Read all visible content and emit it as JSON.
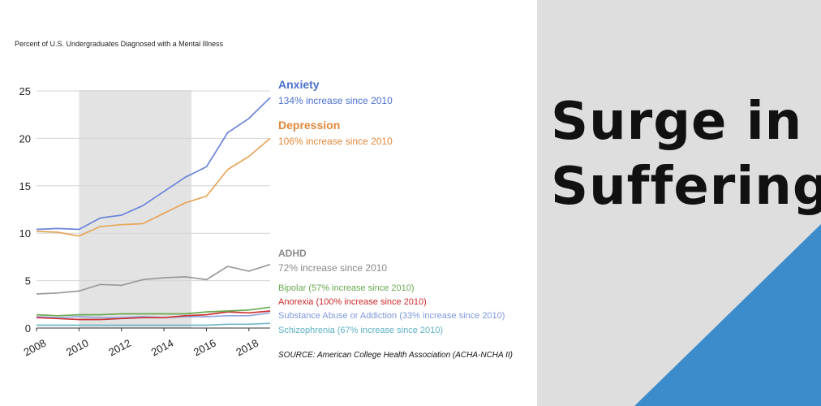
{
  "slide": {
    "title_line1": "Surge in",
    "title_line2": "Suffering",
    "accent_color": "#3c8ccc"
  },
  "chart_title": "Percent of U.S. Undergraduates Diagnosed with a Mental Illness",
  "source": "SOURCE: American College Health Association (ACHA-NCHA II)",
  "labels": {
    "anxiety_name": "Anxiety",
    "anxiety_note": "134% increase since 2010",
    "depression_name": "Depression",
    "depression_note": "106% increase since 2010",
    "adhd_name": "ADHD",
    "adhd_note": "72% increase since 2010",
    "bipolar": "Bipolar (57% increase since 2010)",
    "anorexia": "Anorexia (100% increase since 2010)",
    "substance": "Substance Abuse or Addiction (33% increase since 2010)",
    "schizophrenia": "Schizophrenia (67% increase since 2010)"
  },
  "chart_data": {
    "type": "line",
    "title": "Percent of U.S. Undergraduates Diagnosed with a Mental Illness",
    "xlabel": "",
    "ylabel": "",
    "x": [
      2008,
      2009,
      2010,
      2011,
      2012,
      2013,
      2014,
      2015,
      2016,
      2017,
      2018,
      2019
    ],
    "xlim": [
      2008,
      2019
    ],
    "ylim": [
      0,
      25
    ],
    "x_ticks": [
      2008,
      2010,
      2012,
      2014,
      2016,
      2018
    ],
    "y_ticks": [
      0,
      5,
      10,
      15,
      20,
      25
    ],
    "shaded_region": [
      2010,
      2015.3
    ],
    "series": [
      {
        "name": "Anxiety",
        "color": "#6b84d8",
        "values": [
          10.4,
          10.5,
          10.4,
          11.6,
          11.9,
          12.9,
          14.4,
          15.9,
          17.0,
          20.6,
          22.1,
          24.3
        ]
      },
      {
        "name": "Depression",
        "color": "#e6a65a",
        "values": [
          10.2,
          10.1,
          9.7,
          10.7,
          10.9,
          11.0,
          12.1,
          13.2,
          13.9,
          16.7,
          18.1,
          20.0
        ]
      },
      {
        "name": "ADHD",
        "color": "#9a9a9a",
        "values": [
          3.6,
          3.7,
          3.9,
          4.6,
          4.5,
          5.1,
          5.3,
          5.4,
          5.1,
          6.5,
          6.0,
          6.7
        ]
      },
      {
        "name": "Bipolar",
        "color": "#6aa84f",
        "values": [
          1.4,
          1.3,
          1.4,
          1.4,
          1.5,
          1.5,
          1.5,
          1.5,
          1.7,
          1.8,
          1.9,
          2.2
        ]
      },
      {
        "name": "Anorexia",
        "color": "#cc3333",
        "values": [
          1.1,
          1.0,
          0.9,
          0.9,
          1.0,
          1.1,
          1.1,
          1.3,
          1.4,
          1.7,
          1.6,
          1.8
        ]
      },
      {
        "name": "Substance Abuse or Addiction",
        "color": "#8fa4dd",
        "values": [
          1.2,
          1.1,
          1.2,
          1.1,
          1.1,
          1.2,
          1.1,
          1.2,
          1.2,
          1.3,
          1.3,
          1.6
        ]
      },
      {
        "name": "Schizophrenia",
        "color": "#6fb7c9",
        "values": [
          0.3,
          0.3,
          0.3,
          0.3,
          0.3,
          0.3,
          0.3,
          0.3,
          0.3,
          0.4,
          0.4,
          0.5
        ]
      }
    ]
  }
}
